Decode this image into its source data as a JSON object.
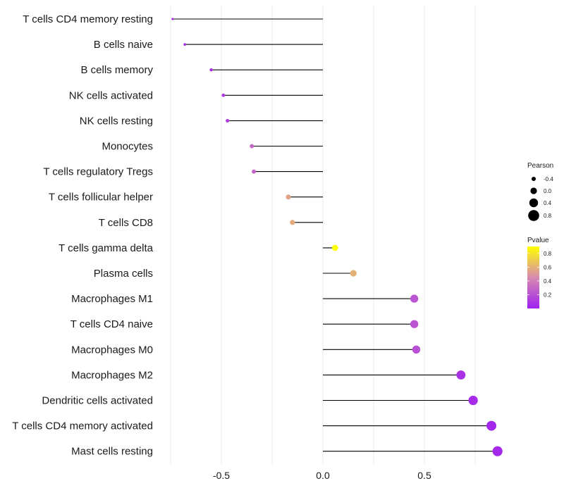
{
  "chart_data": {
    "type": "lollipop",
    "title": "",
    "xlabel": "",
    "ylabel": "",
    "xlim": [
      -0.75,
      0.88
    ],
    "x_ticks": [
      {
        "value": -0.5,
        "label": "-0.5"
      },
      {
        "value": 0.0,
        "label": "0.0"
      },
      {
        "value": 0.5,
        "label": "0.5"
      }
    ],
    "categories": [
      "T cells CD4 memory resting",
      "B cells naive",
      "B cells memory",
      "NK cells activated",
      "NK cells resting",
      "Monocytes",
      "T cells regulatory  Tregs ",
      "T cells follicular helper",
      "T cells CD8",
      "T cells gamma delta",
      "Plasma cells",
      "Macrophages M1",
      "T cells CD4 naive",
      "Macrophages M0",
      "Macrophages M2",
      "Dendritic cells activated",
      "T cells CD4 memory activated",
      "Mast cells resting"
    ],
    "values": [
      -0.74,
      -0.68,
      -0.55,
      -0.49,
      -0.47,
      -0.35,
      -0.34,
      -0.17,
      -0.15,
      0.06,
      0.15,
      0.45,
      0.45,
      0.46,
      0.68,
      0.74,
      0.83,
      0.86
    ],
    "pvalues": [
      0.05,
      0.06,
      0.08,
      0.12,
      0.12,
      0.3,
      0.3,
      0.55,
      0.58,
      0.9,
      0.6,
      0.22,
      0.22,
      0.2,
      0.08,
      0.05,
      0.03,
      0.03
    ],
    "size_legend": {
      "title": "Pearson",
      "entries": [
        {
          "value": -0.4,
          "label": "-0.4"
        },
        {
          "value": 0.0,
          "label": "0.0"
        },
        {
          "value": 0.4,
          "label": "0.4"
        },
        {
          "value": 0.8,
          "label": "0.8"
        }
      ]
    },
    "color_legend": {
      "title": "Pvalue",
      "range": [
        0.0,
        0.9
      ],
      "ticks": [
        {
          "value": 0.8,
          "label": "0.8"
        },
        {
          "value": 0.6,
          "label": "0.6"
        },
        {
          "value": 0.4,
          "label": "0.4"
        },
        {
          "value": 0.2,
          "label": "0.2"
        }
      ],
      "low_color": "#a020f0",
      "mid_color": "#d78ab0",
      "high_color": "#ffff00"
    },
    "grid": true,
    "stem_color": "#000000",
    "gridline_color": "#ebebeb"
  }
}
